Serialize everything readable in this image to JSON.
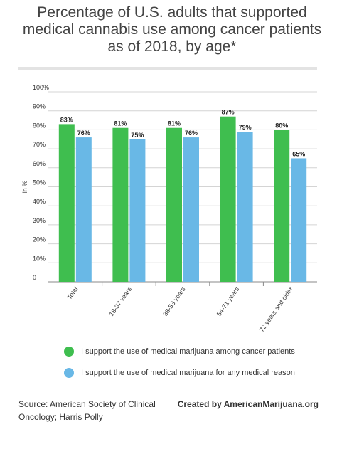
{
  "title": "Percentage of U.S. adults that supported medical cannabis use among cancer patients as of 2018, by age*",
  "chart_data": {
    "type": "bar",
    "categories": [
      "Total",
      "18-37 years",
      "38-53 years",
      "54-71 years",
      "72 years and older"
    ],
    "series": [
      {
        "name": "I support the use of medical marijuana among cancer patients",
        "values": [
          83,
          81,
          81,
          87,
          80
        ],
        "color": "#3fbe4f",
        "value_labels": [
          "83%",
          "81%",
          "81%",
          "87%",
          "80%"
        ]
      },
      {
        "name": "I support the use of medical marijuana for any medical reason",
        "values": [
          76,
          75,
          76,
          79,
          65
        ],
        "color": "#69b8e6",
        "value_labels": [
          "76%",
          "75%",
          "76%",
          "79%",
          "65%"
        ]
      }
    ],
    "ylabel": "in %",
    "ylim": [
      0,
      100
    ],
    "yticks": [
      0,
      10,
      20,
      30,
      40,
      50,
      60,
      70,
      80,
      90,
      100
    ],
    "ytick_labels": [
      "0",
      "10%",
      "20%",
      "30%",
      "40%",
      "50%",
      "60%",
      "70%",
      "80%",
      "90%",
      "100%"
    ],
    "grid": true,
    "legend_position": "bottom"
  },
  "footer": {
    "source": "Source: American Society of Clinical Oncology; Harris Polly",
    "credit": "Created by AmericanMarijuana.org"
  }
}
